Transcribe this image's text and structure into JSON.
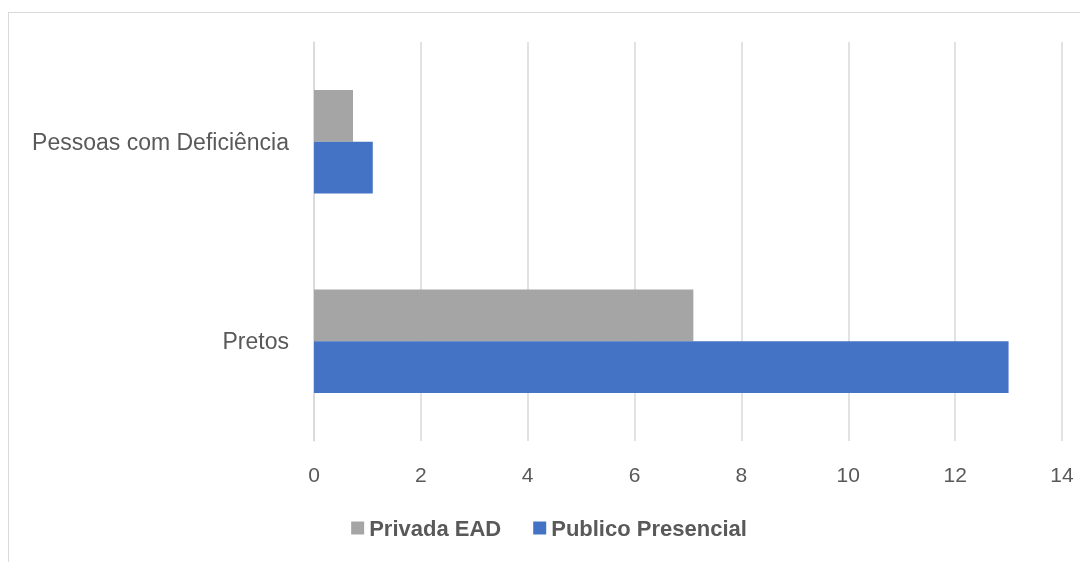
{
  "chart_data": {
    "type": "bar",
    "orientation": "horizontal",
    "categories": [
      "Pessoas com Deficiência",
      "Pretos"
    ],
    "series": [
      {
        "name": "Privada EAD",
        "color": "#a5a5a5",
        "values": [
          0.73,
          7.1
        ]
      },
      {
        "name": "Publico Presencial",
        "color": "#4472c4",
        "values": [
          1.1,
          13.0
        ]
      }
    ],
    "xlim": [
      0,
      14
    ],
    "xticks": [
      0,
      2,
      4,
      6,
      8,
      10,
      12,
      14
    ],
    "grid": "x",
    "legend": "bottom"
  }
}
